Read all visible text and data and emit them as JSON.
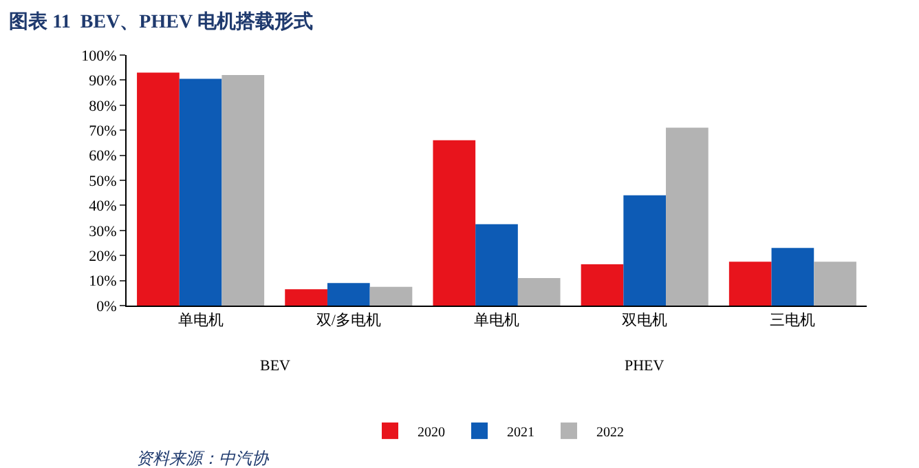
{
  "chart_data": {
    "type": "bar",
    "title": "图表 11  BEV、PHEV 电机搭载形式",
    "categories": [
      "单电机",
      "双/多电机",
      "单电机",
      "双电机",
      "三电机"
    ],
    "series": [
      {
        "name": "2020",
        "color": "#e8141c",
        "values": [
          93,
          6.5,
          66,
          16.5,
          17.5
        ]
      },
      {
        "name": "2021",
        "color": "#0d5bb5",
        "values": [
          90.5,
          9,
          32.5,
          44,
          23
        ]
      },
      {
        "name": "2022",
        "color": "#b3b3b3",
        "values": [
          92,
          7.5,
          11,
          71,
          17.5
        ]
      }
    ],
    "ylim": [
      0,
      100
    ],
    "yticks": [
      {
        "value": 0,
        "label": "0%"
      },
      {
        "value": 10,
        "label": "10%"
      },
      {
        "value": 20,
        "label": "20%"
      },
      {
        "value": 30,
        "label": "30%"
      },
      {
        "value": 40,
        "label": "40%"
      },
      {
        "value": 50,
        "label": "50%"
      },
      {
        "value": 60,
        "label": "60%"
      },
      {
        "value": 70,
        "label": "70%"
      },
      {
        "value": 80,
        "label": "80%"
      },
      {
        "value": 90,
        "label": "90%"
      },
      {
        "value": 100,
        "label": "100%"
      }
    ],
    "legend": "bottom",
    "annotations": [
      "BEV",
      "PHEV",
      "资料来源：中汽协"
    ]
  }
}
